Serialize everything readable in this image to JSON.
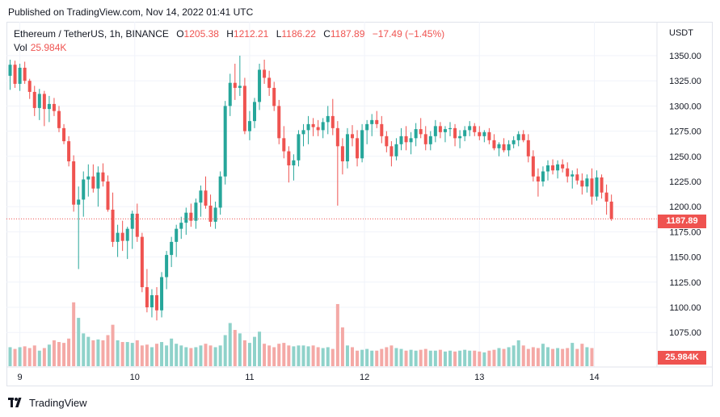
{
  "published": "Published on TradingView.com, Nov 14, 2022 01:41 UTC",
  "legend": {
    "symbol": "Ethereum / TetherUS, 1h, BINANCE",
    "o_label": "O",
    "o": "1205.38",
    "h_label": "H",
    "h": "1212.21",
    "l_label": "L",
    "l": "1186.22",
    "c_label": "C",
    "c": "1187.89",
    "change": "−17.49 (−1.45%)"
  },
  "volume_legend": {
    "label": "Vol",
    "value": "25.984K"
  },
  "axis_currency": "USDT",
  "last_price_tag": "1187.89",
  "last_volume_tag": "25.984K",
  "branding": "TradingView",
  "colors": {
    "up": "#26a69a",
    "down": "#ef5350",
    "up_vol": "#8fd2ca",
    "down_vol": "#f4a9a6",
    "grid": "#f0f3fa"
  },
  "chart_data": {
    "type": "candlestick",
    "title": "Ethereum / TetherUS, 1h, BINANCE",
    "ylabel": "USDT",
    "ylim": [
      1055,
      1363
    ],
    "y_ticks": [
      1075,
      1100,
      1125,
      1150,
      1175,
      1200,
      1225,
      1250,
      1275,
      1300,
      1325,
      1350
    ],
    "x_ticks": [
      "9",
      "10",
      "11",
      "12",
      "13",
      "14"
    ],
    "last_price": 1187.89,
    "series": [
      {
        "name": "ETH/USDT",
        "ohlc": [
          [
            1330,
            1346,
            1316,
            1341
          ],
          [
            1341,
            1345,
            1318,
            1322
          ],
          [
            1322,
            1342,
            1315,
            1338
          ],
          [
            1338,
            1344,
            1322,
            1325
          ],
          [
            1325,
            1327,
            1307,
            1314
          ],
          [
            1314,
            1320,
            1290,
            1298
          ],
          [
            1298,
            1317,
            1286,
            1312
          ],
          [
            1312,
            1315,
            1280,
            1297
          ],
          [
            1297,
            1310,
            1284,
            1302
          ],
          [
            1302,
            1308,
            1290,
            1295
          ],
          [
            1295,
            1300,
            1274,
            1278
          ],
          [
            1278,
            1282,
            1262,
            1265
          ],
          [
            1265,
            1270,
            1240,
            1245
          ],
          [
            1245,
            1251,
            1195,
            1202
          ],
          [
            1202,
            1220,
            1138,
            1207
          ],
          [
            1207,
            1235,
            1190,
            1227
          ],
          [
            1227,
            1242,
            1210,
            1230
          ],
          [
            1230,
            1242,
            1214,
            1218
          ],
          [
            1218,
            1240,
            1200,
            1234
          ],
          [
            1234,
            1243,
            1220,
            1225
          ],
          [
            1225,
            1231,
            1195,
            1197
          ],
          [
            1197,
            1214,
            1160,
            1165
          ],
          [
            1165,
            1182,
            1150,
            1174
          ],
          [
            1174,
            1186,
            1156,
            1166
          ],
          [
            1166,
            1180,
            1148,
            1178
          ],
          [
            1178,
            1196,
            1158,
            1193
          ],
          [
            1193,
            1203,
            1165,
            1170
          ],
          [
            1170,
            1174,
            1115,
            1120
          ],
          [
            1120,
            1138,
            1095,
            1100
          ],
          [
            1100,
            1118,
            1090,
            1112
          ],
          [
            1112,
            1120,
            1087,
            1097
          ],
          [
            1097,
            1135,
            1090,
            1130
          ],
          [
            1130,
            1156,
            1118,
            1152
          ],
          [
            1152,
            1170,
            1140,
            1165
          ],
          [
            1165,
            1182,
            1150,
            1178
          ],
          [
            1178,
            1190,
            1168,
            1184
          ],
          [
            1184,
            1199,
            1172,
            1194
          ],
          [
            1194,
            1203,
            1180,
            1186
          ],
          [
            1186,
            1208,
            1178,
            1204
          ],
          [
            1204,
            1221,
            1190,
            1216
          ],
          [
            1216,
            1230,
            1198,
            1201
          ],
          [
            1201,
            1212,
            1180,
            1185
          ],
          [
            1185,
            1205,
            1178,
            1199
          ],
          [
            1199,
            1235,
            1192,
            1230
          ],
          [
            1230,
            1305,
            1222,
            1300
          ],
          [
            1300,
            1332,
            1290,
            1323
          ],
          [
            1323,
            1342,
            1306,
            1318
          ],
          [
            1318,
            1350,
            1310,
            1320
          ],
          [
            1320,
            1328,
            1272,
            1275
          ],
          [
            1275,
            1295,
            1266,
            1285
          ],
          [
            1285,
            1308,
            1278,
            1304
          ],
          [
            1304,
            1342,
            1296,
            1336
          ],
          [
            1336,
            1346,
            1322,
            1328
          ],
          [
            1328,
            1335,
            1310,
            1318
          ],
          [
            1318,
            1324,
            1295,
            1300
          ],
          [
            1300,
            1306,
            1262,
            1268
          ],
          [
            1268,
            1280,
            1248,
            1255
          ],
          [
            1255,
            1260,
            1224,
            1241
          ],
          [
            1241,
            1252,
            1226,
            1246
          ],
          [
            1246,
            1276,
            1240,
            1272
          ],
          [
            1272,
            1282,
            1260,
            1276
          ],
          [
            1276,
            1290,
            1262,
            1282
          ],
          [
            1282,
            1288,
            1270,
            1279
          ],
          [
            1279,
            1286,
            1270,
            1276
          ],
          [
            1276,
            1288,
            1268,
            1284
          ],
          [
            1284,
            1300,
            1272,
            1290
          ],
          [
            1290,
            1307,
            1271,
            1278
          ],
          [
            1278,
            1285,
            1201,
            1260
          ],
          [
            1260,
            1268,
            1232,
            1245
          ],
          [
            1245,
            1278,
            1238,
            1272
          ],
          [
            1272,
            1281,
            1260,
            1268
          ],
          [
            1268,
            1276,
            1240,
            1248
          ],
          [
            1248,
            1282,
            1244,
            1276
          ],
          [
            1276,
            1286,
            1262,
            1282
          ],
          [
            1282,
            1292,
            1270,
            1286
          ],
          [
            1286,
            1295,
            1278,
            1282
          ],
          [
            1282,
            1290,
            1263,
            1270
          ],
          [
            1270,
            1275,
            1254,
            1260
          ],
          [
            1260,
            1265,
            1240,
            1250
          ],
          [
            1250,
            1268,
            1246,
            1262
          ],
          [
            1262,
            1278,
            1256,
            1270
          ],
          [
            1270,
            1280,
            1256,
            1264
          ],
          [
            1264,
            1274,
            1252,
            1268
          ],
          [
            1268,
            1283,
            1260,
            1277
          ],
          [
            1277,
            1288,
            1268,
            1272
          ],
          [
            1272,
            1280,
            1256,
            1262
          ],
          [
            1262,
            1275,
            1256,
            1270
          ],
          [
            1270,
            1286,
            1264,
            1280
          ],
          [
            1280,
            1284,
            1268,
            1274
          ],
          [
            1274,
            1280,
            1264,
            1277
          ],
          [
            1277,
            1284,
            1270,
            1278
          ],
          [
            1278,
            1282,
            1260,
            1268
          ],
          [
            1268,
            1276,
            1258,
            1270
          ],
          [
            1270,
            1280,
            1265,
            1276
          ],
          [
            1276,
            1285,
            1270,
            1280
          ],
          [
            1280,
            1283,
            1270,
            1274
          ],
          [
            1274,
            1280,
            1266,
            1270
          ],
          [
            1270,
            1276,
            1264,
            1274
          ],
          [
            1274,
            1278,
            1262,
            1266
          ],
          [
            1266,
            1272,
            1256,
            1258
          ],
          [
            1258,
            1264,
            1250,
            1262
          ],
          [
            1262,
            1268,
            1254,
            1256
          ],
          [
            1256,
            1266,
            1250,
            1262
          ],
          [
            1262,
            1270,
            1258,
            1266
          ],
          [
            1266,
            1275,
            1260,
            1272
          ],
          [
            1272,
            1276,
            1264,
            1266
          ],
          [
            1266,
            1272,
            1244,
            1250
          ],
          [
            1250,
            1256,
            1225,
            1230
          ],
          [
            1230,
            1238,
            1210,
            1225
          ],
          [
            1225,
            1240,
            1220,
            1235
          ],
          [
            1235,
            1246,
            1226,
            1241
          ],
          [
            1241,
            1247,
            1232,
            1236
          ],
          [
            1236,
            1246,
            1228,
            1242
          ],
          [
            1242,
            1247,
            1234,
            1238
          ],
          [
            1238,
            1244,
            1224,
            1230
          ],
          [
            1230,
            1236,
            1218,
            1232
          ],
          [
            1232,
            1238,
            1222,
            1226
          ],
          [
            1226,
            1233,
            1212,
            1220
          ],
          [
            1220,
            1232,
            1214,
            1228
          ],
          [
            1228,
            1238,
            1202,
            1210
          ],
          [
            1210,
            1236,
            1206,
            1229
          ],
          [
            1229,
            1232,
            1208,
            1214
          ],
          [
            1214,
            1222,
            1192,
            1205
          ],
          [
            1205,
            1212,
            1186,
            1188
          ]
        ]
      }
    ],
    "volume": [
      {
        "name": "Volume",
        "values": [
          22,
          20,
          22,
          23,
          21,
          24,
          18,
          21,
          25,
          30,
          28,
          27,
          32,
          74,
          56,
          38,
          34,
          30,
          31,
          30,
          36,
          48,
          30,
          28,
          28,
          27,
          30,
          24,
          25,
          22,
          26,
          28,
          24,
          32,
          26,
          24,
          22,
          21,
          22,
          24,
          26,
          24,
          22,
          24,
          36,
          50,
          42,
          38,
          30,
          27,
          34,
          40,
          26,
          24,
          22,
          26,
          27,
          24,
          23,
          24,
          24,
          23,
          24,
          22,
          21,
          22,
          20,
          72,
          45,
          24,
          22,
          18,
          19,
          20,
          18,
          18,
          20,
          22,
          24,
          21,
          20,
          18,
          19,
          18,
          19,
          20,
          18,
          18,
          19,
          17,
          18,
          17,
          18,
          19,
          18,
          18,
          17,
          16,
          18,
          19,
          21,
          20,
          22,
          24,
          30,
          24,
          20,
          22,
          21,
          26,
          22,
          20,
          21,
          20,
          21,
          27,
          20,
          26,
          22,
          21
        ]
      }
    ]
  }
}
